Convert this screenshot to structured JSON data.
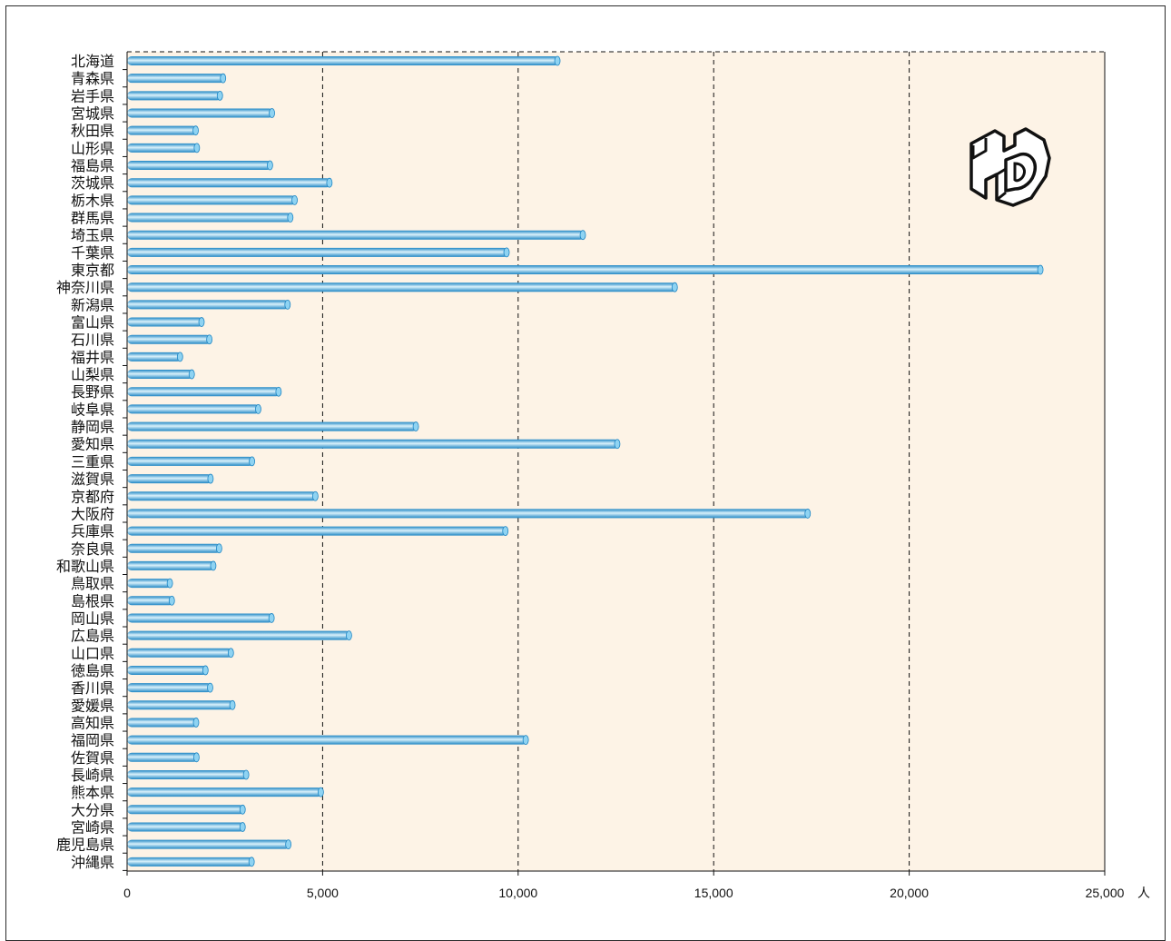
{
  "chart_data": {
    "type": "bar",
    "orientation": "horizontal",
    "categories": [
      "北海道",
      "青森県",
      "岩手県",
      "宮城県",
      "秋田県",
      "山形県",
      "福島県",
      "茨城県",
      "栃木県",
      "群馬県",
      "埼玉県",
      "千葉県",
      "東京都",
      "神奈川県",
      "新潟県",
      "富山県",
      "石川県",
      "福井県",
      "山梨県",
      "長野県",
      "岐阜県",
      "静岡県",
      "愛知県",
      "三重県",
      "滋賀県",
      "京都府",
      "大阪府",
      "兵庫県",
      "奈良県",
      "和歌山県",
      "鳥取県",
      "島根県",
      "岡山県",
      "広島県",
      "山口県",
      "徳島県",
      "香川県",
      "愛媛県",
      "高知県",
      "福岡県",
      "佐賀県",
      "長崎県",
      "熊本県",
      "大分県",
      "宮崎県",
      "鹿児島県",
      "沖縄県"
    ],
    "values": [
      11050,
      2500,
      2420,
      3750,
      1800,
      1830,
      3700,
      5220,
      4330,
      4220,
      11700,
      9750,
      23400,
      14050,
      4150,
      1950,
      2150,
      1400,
      1700,
      3920,
      3400,
      7430,
      12580,
      3240,
      2180,
      4860,
      17450,
      9720,
      2400,
      2250,
      1140,
      1190,
      3740,
      5720,
      2700,
      2050,
      2170,
      2740,
      1810,
      10240,
      1820,
      3090,
      5000,
      3000,
      3000,
      4170,
      3230
    ],
    "x_ticks": [
      "0",
      "5,000",
      "10,000",
      "15,000",
      "20,000",
      "25,000"
    ],
    "xlim": [
      0,
      25000
    ],
    "x_unit": "人",
    "grid": "vertical dashed",
    "colors": {
      "plot_bg": "#fdf3e6",
      "bar_dark": "#1f86c4",
      "bar_light": "#d9f1fb",
      "grid": "#111111"
    }
  },
  "logo": {
    "name": "td-logo-icon",
    "text": "TD"
  }
}
